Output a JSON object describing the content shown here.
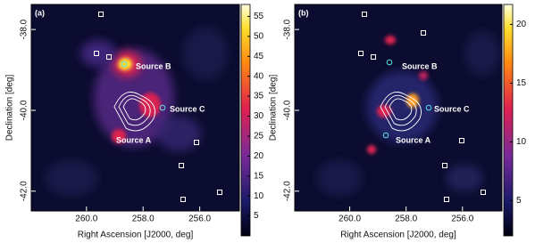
{
  "chart_data": [
    {
      "type": "heatmap",
      "panel_label": "(a)",
      "x_label": "Right Ascension [J2000, deg]",
      "y_label": "Declination [deg]",
      "xlim": [
        261.95,
        254.6
      ],
      "xticks": [
        {
          "value": 260,
          "label": "260.0"
        },
        {
          "value": 258,
          "label": "258.0"
        },
        {
          "value": 256,
          "label": "256.0"
        }
      ],
      "ylim": [
        -42.49,
        -37.38
      ],
      "yticks": [
        {
          "value": -38,
          "label": "-38.0"
        },
        {
          "value": -40,
          "label": "-40.0"
        },
        {
          "value": -42,
          "label": "-42.0"
        }
      ],
      "colorbar_lim": [
        0,
        58
      ],
      "colorbar_ticks": [
        5,
        10,
        15,
        20,
        25,
        30,
        35,
        40,
        45,
        50,
        55
      ],
      "annotations": [
        "Source A",
        "Source B",
        "Source C"
      ]
    },
    {
      "type": "heatmap",
      "panel_label": "(b)",
      "x_label": "Right Ascension [J2000, deg]",
      "y_label": "Declination [deg]",
      "xlim": [
        261.95,
        254.6
      ],
      "xticks": [
        {
          "value": 260,
          "label": "260.0"
        },
        {
          "value": 258,
          "label": "258.0"
        },
        {
          "value": 256,
          "label": "256.0"
        }
      ],
      "ylim": [
        -42.49,
        -37.38
      ],
      "yticks": [
        {
          "value": -38,
          "label": "-38.0"
        },
        {
          "value": -40,
          "label": "-40.0"
        },
        {
          "value": -42,
          "label": "-42.0"
        }
      ],
      "colorbar_lim": [
        2,
        21.7
      ],
      "colorbar_ticks": [
        5,
        10,
        15,
        20
      ],
      "annotations": [
        "Source A",
        "Source B",
        "Source C"
      ]
    }
  ]
}
